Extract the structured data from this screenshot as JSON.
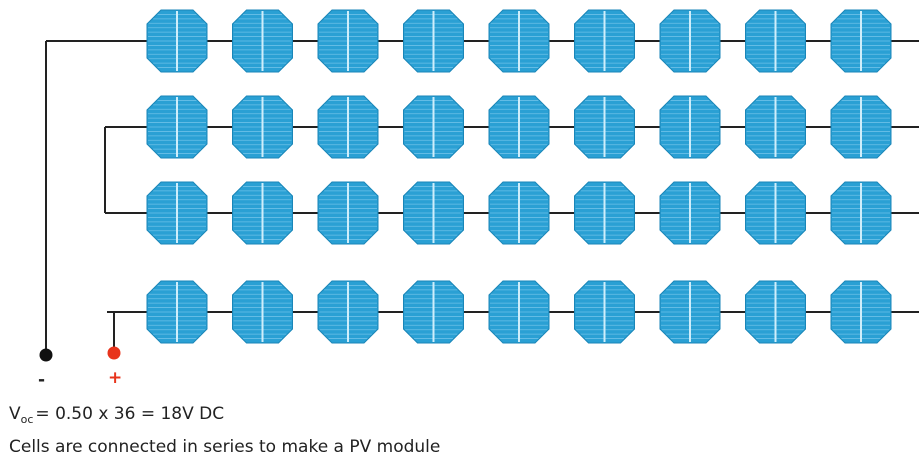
{
  "module": {
    "rows": 4,
    "cells_per_row": 9,
    "cell_color": "#2aa0d4",
    "cell_edge_color": "#1a86b8",
    "wire_color": "#222222"
  },
  "terminals": {
    "negative": {
      "label": "-",
      "color": "#111111"
    },
    "positive": {
      "label": "+",
      "color": "#e8341c"
    }
  },
  "formula": {
    "symbol": "V",
    "subscript": "oc",
    "expression": "=  0.50 x 36 = 18V DC"
  },
  "caption": "Cells are connected in series to make a PV module"
}
